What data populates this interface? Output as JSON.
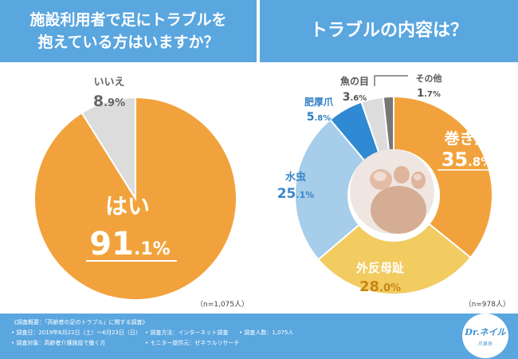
{
  "left_header": {
    "title": "施設利用者で足にトラブルを\n抱えている方はいますか？"
  },
  "right_header": {
    "title": "トラブルの内容は？"
  },
  "chart_data": [
    {
      "type": "pie",
      "title": "施設利用者で足にトラブルを抱えている方はいますか？",
      "n_label": "（n=1,075人）",
      "slices": [
        {
          "label": "はい",
          "value": 91.1,
          "color": "#f2a23c"
        },
        {
          "label": "いいえ",
          "value": 8.9,
          "color": "#dcdcdc"
        }
      ]
    },
    {
      "type": "pie",
      "title": "トラブルの内容は？",
      "n_label": "（n=978人）",
      "slices": [
        {
          "label": "巻き爪",
          "value": 35.8,
          "color": "#f2a23c"
        },
        {
          "label": "外反母趾",
          "value": 28.0,
          "color": "#f2cc61"
        },
        {
          "label": "水虫",
          "value": 25.1,
          "color": "#a6cdea"
        },
        {
          "label": "肥厚爪",
          "value": 5.8,
          "color": "#2f8ad3"
        },
        {
          "label": "魚の目",
          "value": 3.6,
          "color": "#dcdcdc"
        },
        {
          "label": "その他",
          "value": 1.7,
          "color": "#777777"
        }
      ]
    }
  ],
  "footer": {
    "line1": "《調査概要：「高齢者の足のトラブル」に関する調査》",
    "line2a": "• 調査日：2019年6月22日（土）〜6月23日（日）",
    "line2b": "• 調査方法：インターネット調査",
    "line2c": "• 調査人数：1,075人",
    "line3a": "• 調査対象：高齢者介護施設で働く方",
    "line3b": "• モニター提供元：ゼネラルリサーチ"
  },
  "logo": {
    "main": "Dr.ネイル",
    "sub": "爪革命"
  }
}
